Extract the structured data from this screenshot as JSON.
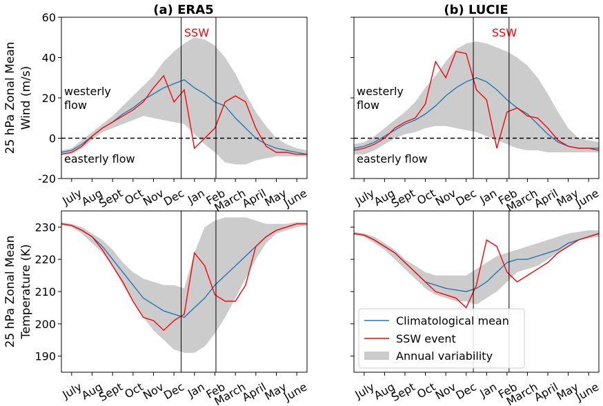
{
  "figure": {
    "colors": {
      "mean": "#1f77b4",
      "ssw": "#ff0000",
      "band": "#cccccc",
      "axis": "#000000"
    }
  },
  "chart_data": [
    {
      "id": "era5-wind",
      "type": "line",
      "title": "(a) ERA5",
      "ylabel": [
        "25 hPa Zonal Mean",
        "Wind (m/s)"
      ],
      "xlabel": "",
      "ylim": [
        -20,
        60
      ],
      "yticks": [
        -20,
        0,
        20,
        40,
        60
      ],
      "xticks": [
        "July",
        "Aug",
        "Sept",
        "Oct",
        "Nov",
        "Dec",
        "Jan",
        "Feb",
        "March",
        "April",
        "May",
        "June"
      ],
      "grid": false,
      "zero_line": 0,
      "ssw_window_months": [
        5.85,
        7.55
      ],
      "annotations": {
        "ssw": "SSW",
        "westerly": [
          "westerly",
          "flow"
        ],
        "easterly": "easterly flow"
      },
      "x_months": [
        0,
        0.5,
        1,
        1.5,
        2,
        2.5,
        3,
        3.5,
        4,
        4.5,
        5,
        5.5,
        6,
        6.5,
        7,
        7.5,
        8,
        8.5,
        9,
        9.5,
        10,
        10.5,
        11,
        11.5,
        12
      ],
      "mean": [
        -7,
        -6,
        -3,
        1,
        5,
        8,
        12,
        15,
        19,
        22,
        25,
        27,
        29,
        25,
        22,
        18,
        16,
        10,
        5,
        0,
        -3,
        -5,
        -6,
        -7,
        -8
      ],
      "upper": [
        -6,
        -5,
        -1,
        3,
        7,
        11,
        16,
        21,
        26,
        31,
        38,
        43,
        47,
        50,
        49,
        46,
        40,
        32,
        22,
        13,
        6,
        0,
        -3,
        -5,
        -6
      ],
      "lower": [
        -8,
        -8,
        -5,
        -1,
        3,
        5,
        7,
        9,
        11,
        10,
        9,
        8,
        7,
        2,
        -3,
        -7,
        -12,
        -13,
        -13,
        -11,
        -10,
        -9,
        -9,
        -9,
        -9
      ],
      "ssw": [
        -8,
        -7,
        -4,
        1,
        5,
        8,
        11,
        14,
        18,
        25,
        31,
        18,
        24,
        -5,
        0,
        5,
        18,
        21,
        18,
        5,
        -4,
        -7,
        -7,
        -8,
        -8
      ]
    },
    {
      "id": "lucie-wind",
      "type": "line",
      "title": "(b) LUCIE",
      "ylabel": [],
      "ylim": [
        -20,
        60
      ],
      "yticks": [
        -20,
        0,
        20,
        40,
        60
      ],
      "xticks": [
        "July",
        "Aug",
        "Sept",
        "Oct",
        "Nov",
        "Dec",
        "Jan",
        "Feb",
        "March",
        "April",
        "May",
        "June"
      ],
      "grid": false,
      "zero_line": 0,
      "ssw_window_months": [
        5.85,
        7.6
      ],
      "annotations": {
        "ssw": "SSW",
        "westerly": [
          "westerly",
          "flow"
        ],
        "easterly": "easterly flow"
      },
      "x_months": [
        0,
        0.5,
        1,
        1.5,
        2,
        2.5,
        3,
        3.5,
        4,
        4.5,
        5,
        5.5,
        6,
        6.5,
        7,
        7.5,
        8,
        8.5,
        9,
        9.5,
        10,
        10.5,
        11,
        11.5,
        12
      ],
      "mean": [
        -5,
        -4,
        -2,
        1,
        4,
        7,
        9,
        12,
        16,
        21,
        25,
        28,
        30,
        28,
        24,
        19,
        15,
        12,
        7,
        2,
        -2,
        -4,
        -5,
        -5,
        -5
      ],
      "upper": [
        -3,
        -2,
        1,
        5,
        9,
        13,
        18,
        25,
        31,
        38,
        44,
        47,
        48,
        47,
        45,
        43,
        40,
        36,
        30,
        22,
        13,
        5,
        0,
        -1,
        -2
      ],
      "lower": [
        -8,
        -8,
        -6,
        -3,
        0,
        2,
        3,
        5,
        6,
        6,
        5,
        4,
        3,
        1,
        -1,
        -3,
        -5,
        -6,
        -6,
        -7,
        -7,
        -7,
        -7,
        -7,
        -7
      ],
      "ssw": [
        -6,
        -5,
        -3,
        0,
        5,
        8,
        10,
        17,
        38,
        30,
        43,
        42,
        24,
        19,
        -5,
        13,
        15,
        11,
        10,
        5,
        -1,
        -4,
        -5,
        -5,
        -6
      ]
    },
    {
      "id": "era5-temp",
      "type": "line",
      "title": "",
      "ylabel": [
        "25 hPa Zonal Mean",
        "Temperature (K)"
      ],
      "ylim": [
        185,
        235
      ],
      "yticks": [
        190,
        200,
        210,
        220,
        230
      ],
      "xticks": [
        "July",
        "Aug",
        "Sept",
        "Oct",
        "Nov",
        "Dec",
        "Jan",
        "Feb",
        "March",
        "April",
        "May",
        "June"
      ],
      "grid": false,
      "ssw_window_months": [
        5.85,
        7.55
      ],
      "x_months": [
        0,
        0.5,
        1,
        1.5,
        2,
        2.5,
        3,
        3.5,
        4,
        4.5,
        5,
        5.5,
        6,
        6.5,
        7,
        7.5,
        8,
        8.5,
        9,
        9.5,
        10,
        10.5,
        11,
        11.5,
        12
      ],
      "mean": [
        231,
        230.5,
        229,
        227,
        224,
        220,
        216,
        212,
        208,
        206,
        204,
        203,
        202,
        205,
        208,
        212,
        215,
        218,
        221,
        224,
        227,
        229,
        230,
        231,
        231
      ],
      "upper": [
        231.5,
        231,
        230,
        228,
        226,
        223,
        219,
        216,
        214,
        213,
        212,
        212,
        211,
        222,
        230,
        232,
        233,
        233,
        233,
        232,
        231,
        231,
        231,
        231.5,
        231.5
      ],
      "lower": [
        230.5,
        230,
        228,
        225,
        222,
        218,
        212,
        207,
        202,
        198,
        195,
        192,
        191,
        191,
        193,
        197,
        202,
        208,
        214,
        220,
        225,
        228,
        229,
        230,
        230.5
      ],
      "ssw": [
        231,
        230.5,
        229,
        227,
        223,
        218,
        213,
        207,
        202,
        201,
        198,
        201,
        203,
        222,
        218,
        209,
        207,
        207,
        212,
        224,
        227,
        229,
        230,
        231,
        231
      ]
    },
    {
      "id": "lucie-temp",
      "type": "line",
      "title": "",
      "ylabel": [],
      "ylim": [
        185,
        235
      ],
      "yticks": [
        190,
        200,
        210,
        220,
        230
      ],
      "xticks": [
        "July",
        "Aug",
        "Sept",
        "Oct",
        "Nov",
        "Dec",
        "Jan",
        "Feb",
        "March",
        "April",
        "May",
        "June"
      ],
      "grid": false,
      "ssw_window_months": [
        5.85,
        7.6
      ],
      "legend": {
        "placement": "lower-left",
        "entries": [
          "Climatological mean",
          "SSW event",
          "Annual variability"
        ]
      },
      "x_months": [
        0,
        0.5,
        1,
        1.5,
        2,
        2.5,
        3,
        3.5,
        4,
        4.5,
        5,
        5.5,
        6,
        6.5,
        7,
        7.5,
        8,
        8.5,
        9,
        9.5,
        10,
        10.5,
        11,
        11.5,
        12
      ],
      "mean": [
        228,
        227.5,
        226,
        224,
        222,
        219,
        216,
        213,
        212,
        211,
        210.5,
        210,
        211,
        213,
        216,
        219,
        220,
        220,
        221,
        222,
        223,
        225,
        226,
        227,
        228
      ],
      "upper": [
        228.5,
        228,
        227,
        225,
        223,
        220,
        218,
        216,
        215,
        215,
        215,
        215,
        217,
        219,
        221,
        222,
        223,
        224,
        225,
        226,
        227,
        228,
        228.5,
        229,
        229
      ],
      "lower": [
        227.5,
        227,
        225,
        223,
        220,
        217,
        214,
        211,
        209,
        208,
        207,
        207,
        206,
        208,
        210,
        213,
        216,
        217,
        218,
        220,
        222,
        224,
        226,
        226.5,
        227
      ],
      "ssw": [
        228,
        227.5,
        226,
        224,
        222,
        219,
        216,
        213,
        210,
        209,
        208,
        205,
        212,
        226,
        224,
        216,
        213,
        215,
        217,
        219,
        222,
        224,
        226,
        227,
        228
      ]
    }
  ]
}
